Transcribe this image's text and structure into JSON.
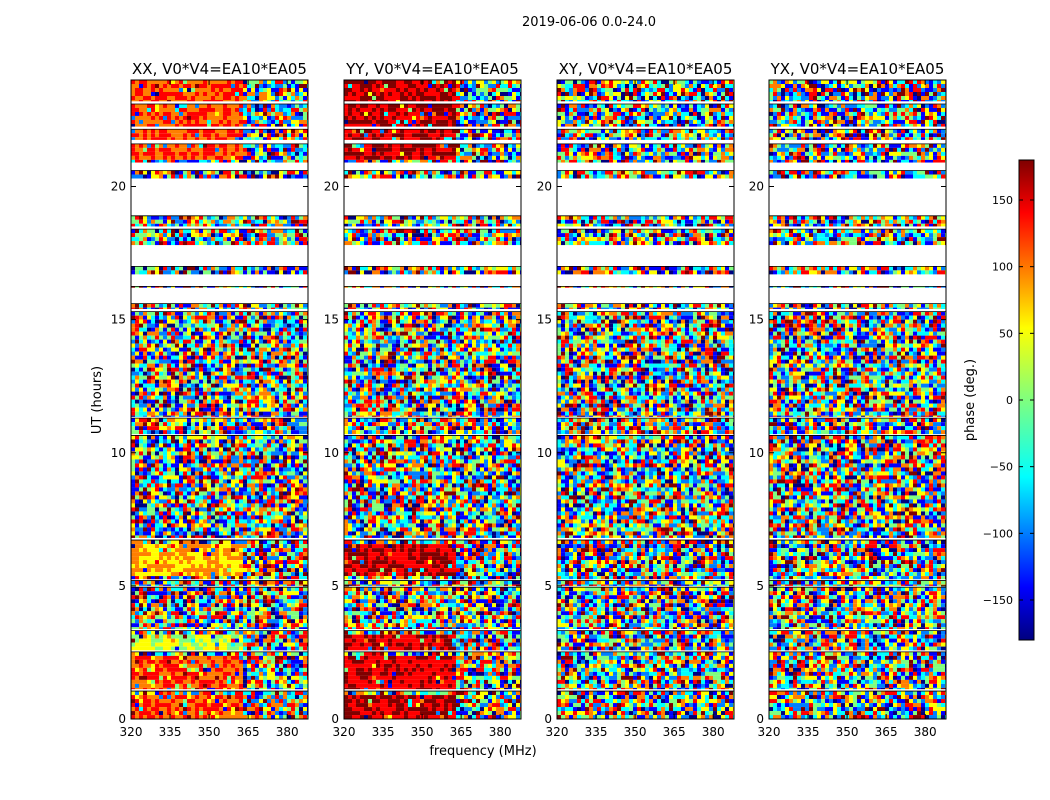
{
  "figure_title": "2019-06-06 0.0-24.0",
  "colorbar_label": "phase (deg.)",
  "chart_data": [
    {
      "type": "heatmap",
      "title": "XX, V0*V4=EA10*EA05",
      "ylabel": "UT (hours)",
      "xlabel": "",
      "xlim": [
        320,
        388
      ],
      "ylim": [
        0,
        24
      ],
      "xticks": [
        320,
        335,
        350,
        365,
        380
      ],
      "yticks": [
        0,
        5,
        10,
        15,
        20
      ],
      "coherent_bands": [
        {
          "y": [
            0.0,
            1.0
          ],
          "hue": "warm"
        },
        {
          "y": [
            1.1,
            2.5
          ],
          "hue": "warm"
        },
        {
          "y": [
            2.55,
            3.3
          ],
          "hue": "yellow-green"
        },
        {
          "y": [
            5.5,
            6.7
          ],
          "hue": "yellow"
        },
        {
          "y": [
            21.0,
            24.0
          ],
          "hue": "orange"
        }
      ]
    },
    {
      "type": "heatmap",
      "title": "YY, V0*V4=EA10*EA05",
      "ylabel": "",
      "xlabel": "frequency (MHz)",
      "xlim": [
        320,
        388
      ],
      "ylim": [
        0,
        24
      ],
      "xticks": [
        320,
        335,
        350,
        365,
        380
      ],
      "yticks": [
        0,
        5,
        10,
        15,
        20
      ],
      "coherent_bands": [
        {
          "y": [
            0.0,
            1.0
          ],
          "hue": "dark-red"
        },
        {
          "y": [
            1.1,
            2.5
          ],
          "hue": "red"
        },
        {
          "y": [
            2.55,
            3.3
          ],
          "hue": "red"
        },
        {
          "y": [
            5.5,
            6.7
          ],
          "hue": "dark-red"
        },
        {
          "y": [
            21.0,
            24.0
          ],
          "hue": "dark-red"
        }
      ]
    },
    {
      "type": "heatmap",
      "title": "XY, V0*V4=EA10*EA05",
      "ylabel": "",
      "xlabel": "",
      "xlim": [
        320,
        388
      ],
      "ylim": [
        0,
        24
      ],
      "xticks": [
        320,
        335,
        350,
        365,
        380
      ],
      "yticks": [
        0,
        5,
        10,
        15,
        20
      ],
      "coherent_bands": []
    },
    {
      "type": "heatmap",
      "title": "YX, V0*V4=EA10*EA05",
      "ylabel": "",
      "xlabel": "",
      "xlim": [
        320,
        388
      ],
      "ylim": [
        0,
        24
      ],
      "xticks": [
        320,
        335,
        350,
        365,
        380
      ],
      "yticks": [
        0,
        5,
        10,
        15,
        20
      ],
      "coherent_bands": []
    }
  ],
  "colorbar": {
    "range": [
      -180,
      180
    ],
    "ticks": [
      150,
      100,
      50,
      0,
      -50,
      -100,
      -150
    ],
    "tick_labels": [
      "150",
      "100",
      "50",
      "0",
      "−50",
      "−100",
      "−150"
    ]
  },
  "data_segments": [
    [
      0.0,
      1.05
    ],
    [
      1.12,
      2.52
    ],
    [
      2.58,
      3.32
    ],
    [
      3.38,
      4.95
    ],
    [
      5.0,
      5.2
    ],
    [
      5.25,
      6.72
    ],
    [
      6.8,
      10.65
    ],
    [
      10.7,
      11.3
    ],
    [
      11.35,
      15.3
    ],
    [
      15.4,
      15.6
    ],
    [
      16.2,
      16.25
    ],
    [
      16.7,
      17.0
    ],
    [
      17.8,
      18.4
    ],
    [
      18.5,
      18.9
    ],
    [
      20.3,
      20.6
    ],
    [
      20.9,
      21.6
    ],
    [
      21.75,
      22.15
    ],
    [
      22.25,
      23.1
    ],
    [
      23.2,
      24.0
    ]
  ],
  "colors": {
    "jet": [
      "#00007f",
      "#0000ff",
      "#007fff",
      "#00ffff",
      "#7fff7f",
      "#ffff00",
      "#ff7f00",
      "#ff0000",
      "#7f0000"
    ]
  }
}
